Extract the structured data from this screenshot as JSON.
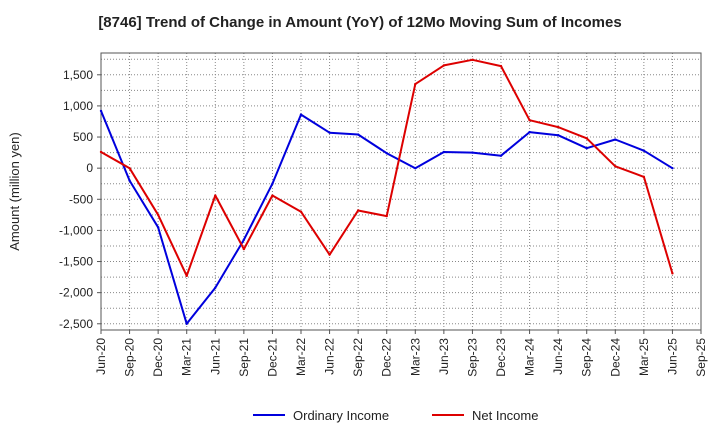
{
  "chart_data": {
    "type": "line",
    "title": "[8746]  Trend of Change in Amount (YoY) of 12Mo Moving Sum of Incomes",
    "xlabel": "",
    "ylabel": "Amount (million yen)",
    "ylim": [
      -2600,
      1850
    ],
    "yticks": [
      1500,
      1000,
      500,
      0,
      -500,
      -1000,
      -1500,
      -2000,
      -2500
    ],
    "ytick_labels": [
      "1,500",
      "1,000",
      "500",
      "0",
      "-500",
      "-1,000",
      "-1,500",
      "-2,000",
      "-2,500"
    ],
    "categories": [
      "Jun-20",
      "Sep-20",
      "Dec-20",
      "Mar-21",
      "Jun-21",
      "Sep-21",
      "Dec-21",
      "Mar-22",
      "Jun-22",
      "Sep-22",
      "Dec-22",
      "Mar-23",
      "Jun-23",
      "Sep-23",
      "Dec-23",
      "Mar-24",
      "Jun-24",
      "Sep-24",
      "Dec-24",
      "Mar-25",
      "Jun-25",
      "Sep-25"
    ],
    "series": [
      {
        "name": "Ordinary Income",
        "color": "#0000dd",
        "values": [
          920,
          -200,
          -950,
          -2500,
          -1920,
          -1150,
          -250,
          860,
          570,
          540,
          240,
          0,
          260,
          250,
          200,
          580,
          530,
          320,
          460,
          280,
          0,
          null
        ]
      },
      {
        "name": "Net Income",
        "color": "#dd0000",
        "values": [
          260,
          0,
          -750,
          -1730,
          -440,
          -1300,
          -440,
          -700,
          -1390,
          -680,
          -770,
          1350,
          1650,
          1740,
          1640,
          770,
          660,
          480,
          30,
          -140,
          -1690,
          null
        ]
      }
    ],
    "legend": [
      "Ordinary Income",
      "Net Income"
    ],
    "legend_position": "bottom-center",
    "grid": true
  }
}
